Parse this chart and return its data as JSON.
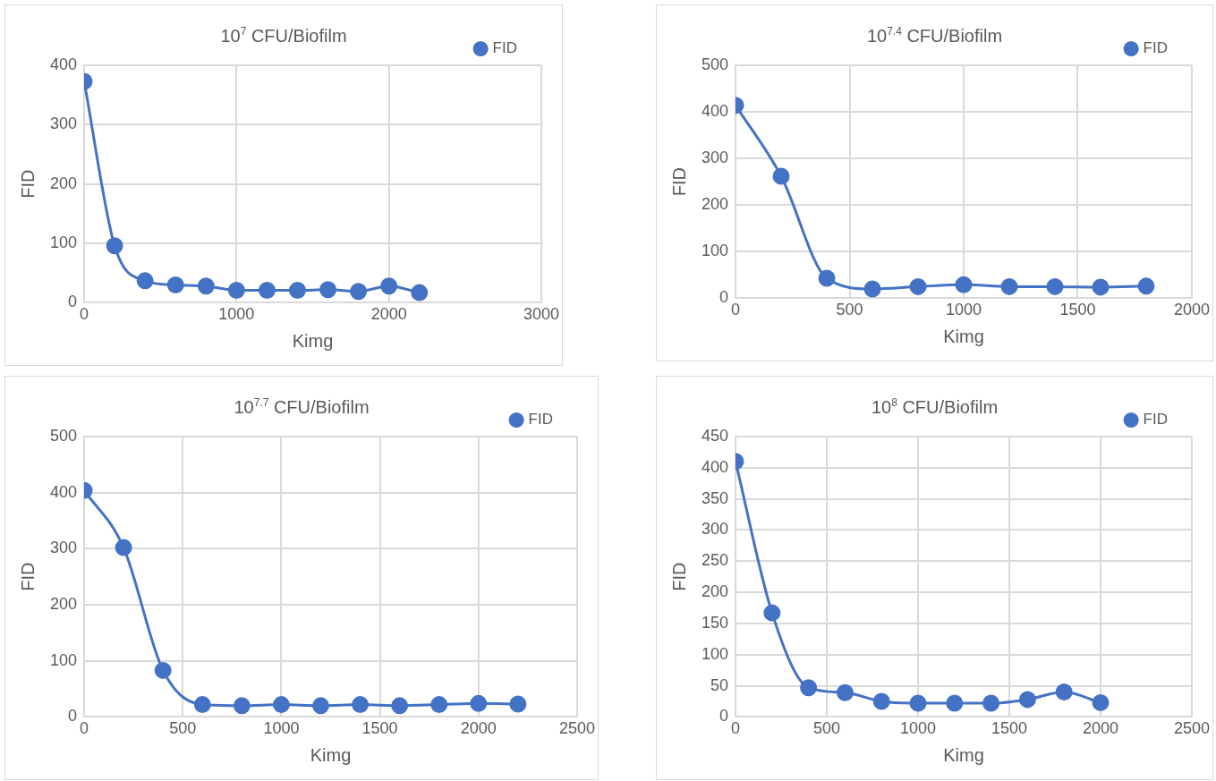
{
  "chart_data": [
    {
      "type": "line",
      "title": "10$^{7}$ CFU/Biofilm",
      "xlabel": "Kimg",
      "ylabel": "FID",
      "x": [
        0,
        200,
        400,
        600,
        800,
        1000,
        1200,
        1400,
        1600,
        1800,
        2000,
        2200
      ],
      "series": [
        {
          "name": "FID",
          "color": "#4472c4",
          "values": [
            373,
            96,
            37,
            30,
            28,
            21,
            21,
            21,
            22,
            19,
            28,
            17
          ]
        }
      ],
      "xlim": [
        0,
        3000
      ],
      "xticks": [
        0,
        1000,
        2000,
        3000
      ],
      "ylim": [
        0,
        400
      ],
      "yticks": [
        0,
        100,
        200,
        300,
        400
      ],
      "grid": true,
      "legend": "top right",
      "marker": "circle",
      "line_style": "solid"
    },
    {
      "type": "line",
      "title": "10$^{7.4}$ CFU/Biofilm",
      "xlabel": "Kimg",
      "ylabel": "FID",
      "x": [
        0,
        200,
        400,
        600,
        800,
        1000,
        1200,
        1400,
        1600,
        1800
      ],
      "series": [
        {
          "name": "FID",
          "color": "#4472c4",
          "values": [
            414,
            262,
            43,
            20,
            25,
            29,
            25,
            25,
            24,
            26
          ]
        }
      ],
      "xlim": [
        0,
        2000
      ],
      "xticks": [
        0,
        500,
        1000,
        1500,
        2000
      ],
      "ylim": [
        0,
        500
      ],
      "yticks": [
        0,
        100,
        200,
        300,
        400,
        500
      ],
      "grid": true,
      "legend": "top right",
      "marker": "circle",
      "line_style": "solid"
    },
    {
      "type": "line",
      "title": "10$^{7.7}$ CFU/Biofilm",
      "xlabel": "Kimg",
      "ylabel": "FID",
      "x": [
        0,
        200,
        400,
        600,
        800,
        1000,
        1200,
        1400,
        1600,
        1800,
        2000,
        2200
      ],
      "series": [
        {
          "name": "FID",
          "color": "#4472c4",
          "values": [
            404,
            302,
            83,
            22,
            20,
            22,
            20,
            22,
            20,
            22,
            24,
            23
          ]
        }
      ],
      "xlim": [
        0,
        2500
      ],
      "xticks": [
        0,
        500,
        1000,
        1500,
        2000,
        2500
      ],
      "ylim": [
        0,
        500
      ],
      "yticks": [
        0,
        100,
        200,
        300,
        400,
        500
      ],
      "grid": true,
      "legend": "top right",
      "marker": "circle",
      "line_style": "solid"
    },
    {
      "type": "line",
      "title": "10$^{8}$ CFU/Biofilm",
      "xlabel": "Kimg",
      "ylabel": "FID",
      "x": [
        0,
        200,
        400,
        600,
        800,
        1000,
        1200,
        1400,
        1600,
        1800,
        2000
      ],
      "series": [
        {
          "name": "FID",
          "color": "#4472c4",
          "values": [
            410,
            167,
            47,
            39,
            25,
            22,
            22,
            22,
            28,
            40,
            23
          ]
        }
      ],
      "xlim": [
        0,
        2500
      ],
      "xticks": [
        0,
        500,
        1000,
        1500,
        2000,
        2500
      ],
      "ylim": [
        0,
        450
      ],
      "yticks": [
        0,
        50,
        100,
        150,
        200,
        250,
        300,
        350,
        400,
        450
      ],
      "grid": true,
      "legend": "top right",
      "marker": "circle",
      "line_style": "solid"
    }
  ]
}
